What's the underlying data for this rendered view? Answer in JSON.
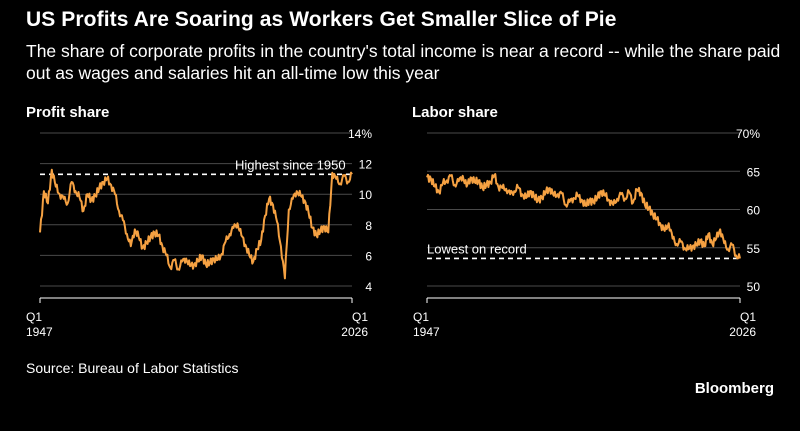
{
  "title": "US Profits Are Soaring as Workers Get Smaller Slice of Pie",
  "subtitle": "The share of corporate profits in the country's total income is near a record -- while the share paid out as wages and salaries hit an all-time low this year",
  "source": "Source: Bureau of Labor Statistics",
  "brand": "Bloomberg",
  "colors": {
    "line": "#f5a142",
    "grid": "#4a4a4a",
    "reference": "#ffffff",
    "background": "#000000"
  },
  "chart_data": [
    {
      "type": "line",
      "title": "Profit share",
      "y_unit": "%",
      "ylim": [
        4,
        14
      ],
      "y_ticks": [
        4,
        6,
        8,
        10,
        12,
        14
      ],
      "y_tick_labels": [
        "4",
        "6",
        "8",
        "10",
        "12",
        "14%"
      ],
      "xlim": [
        1947,
        2026
      ],
      "x_tick_labels": [
        {
          "line1": "Q1",
          "line2": "1947"
        },
        {
          "line1": "Q1",
          "line2": "2026"
        }
      ],
      "reference_line": {
        "value": 11.3,
        "label": "Highest since 1950"
      },
      "grid": true,
      "series": [
        {
          "x": [
            1947,
            1948,
            1949,
            1950,
            1951,
            1952,
            1953,
            1954,
            1955,
            1956,
            1957,
            1958,
            1959,
            1960,
            1961,
            1962,
            1963,
            1964,
            1965,
            1966,
            1967,
            1968,
            1969,
            1970,
            1971,
            1972,
            1973,
            1974,
            1975,
            1976,
            1977,
            1978,
            1979,
            1980,
            1981,
            1982,
            1983,
            1984,
            1985,
            1986,
            1987,
            1988,
            1989,
            1990,
            1991,
            1992,
            1993,
            1994,
            1995,
            1996,
            1997,
            1998,
            1999,
            2000,
            2001,
            2002,
            2003,
            2004,
            2005,
            2006,
            2007,
            2008,
            2009,
            2010,
            2011,
            2012,
            2013,
            2014,
            2015,
            2016,
            2017,
            2018,
            2019,
            2020,
            2021,
            2022,
            2023,
            2024,
            2025,
            2026
          ],
          "y": [
            7.5,
            10.2,
            9.4,
            11.6,
            10.5,
            10.0,
            9.7,
            9.4,
            10.8,
            10.2,
            9.8,
            8.9,
            10.0,
            9.6,
            9.9,
            10.4,
            10.8,
            11.0,
            10.6,
            10.0,
            8.9,
            8.3,
            7.4,
            6.6,
            7.7,
            7.2,
            6.5,
            6.8,
            7.2,
            7.5,
            7.3,
            6.6,
            6.0,
            5.2,
            5.7,
            5.1,
            5.6,
            5.8,
            5.3,
            5.4,
            5.6,
            6.0,
            5.4,
            5.5,
            5.8,
            5.7,
            6.1,
            6.9,
            7.4,
            7.8,
            8.1,
            7.3,
            6.7,
            6.0,
            5.6,
            6.4,
            7.0,
            8.6,
            9.7,
            9.3,
            8.2,
            6.6,
            4.5,
            9.0,
            9.7,
            10.2,
            9.9,
            9.6,
            8.8,
            7.8,
            7.3,
            7.6,
            7.9,
            7.5,
            11.4,
            11.0,
            10.7,
            11.2,
            10.8,
            11.3
          ]
        }
      ]
    },
    {
      "type": "line",
      "title": "Labor share",
      "y_unit": "%",
      "ylim": [
        50,
        70
      ],
      "y_ticks": [
        50,
        55,
        60,
        65,
        70
      ],
      "y_tick_labels": [
        "50",
        "55",
        "60",
        "65",
        "70%"
      ],
      "xlim": [
        1947,
        2026
      ],
      "x_tick_labels": [
        {
          "line1": "Q1",
          "line2": "1947"
        },
        {
          "line1": "Q1",
          "line2": "2026"
        }
      ],
      "reference_line": {
        "value": 53.6,
        "label": "Lowest on record"
      },
      "grid": true,
      "series": [
        {
          "x": [
            1947,
            1948,
            1949,
            1950,
            1951,
            1952,
            1953,
            1954,
            1955,
            1956,
            1957,
            1958,
            1959,
            1960,
            1961,
            1962,
            1963,
            1964,
            1965,
            1966,
            1967,
            1968,
            1969,
            1970,
            1971,
            1972,
            1973,
            1974,
            1975,
            1976,
            1977,
            1978,
            1979,
            1980,
            1981,
            1982,
            1983,
            1984,
            1985,
            1986,
            1987,
            1988,
            1989,
            1990,
            1991,
            1992,
            1993,
            1994,
            1995,
            1996,
            1997,
            1998,
            1999,
            2000,
            2001,
            2002,
            2003,
            2004,
            2005,
            2006,
            2007,
            2008,
            2009,
            2010,
            2011,
            2012,
            2013,
            2014,
            2015,
            2016,
            2017,
            2018,
            2019,
            2020,
            2021,
            2022,
            2023,
            2024,
            2025,
            2026
          ],
          "y": [
            64.2,
            64.0,
            63.0,
            62.3,
            63.4,
            63.8,
            64.4,
            63.2,
            63.7,
            64.4,
            63.0,
            64.2,
            63.6,
            63.8,
            62.8,
            63.2,
            63.6,
            64.5,
            63.0,
            62.8,
            62.7,
            62.0,
            62.4,
            62.9,
            62.0,
            61.5,
            62.4,
            61.7,
            61.2,
            61.6,
            62.3,
            62.8,
            61.8,
            62.0,
            62.1,
            60.6,
            61.0,
            61.5,
            61.8,
            61.3,
            60.5,
            61.2,
            61.0,
            61.6,
            62.4,
            61.8,
            61.2,
            60.6,
            61.4,
            62.0,
            61.4,
            62.3,
            60.9,
            62.6,
            62.2,
            60.6,
            60.2,
            59.4,
            58.7,
            58.0,
            57.2,
            58.2,
            56.2,
            55.5,
            55.8,
            55.0,
            54.8,
            55.2,
            55.3,
            56.0,
            55.2,
            56.8,
            55.5,
            56.2,
            57.4,
            55.6,
            54.8,
            55.4,
            54.0,
            53.6
          ]
        }
      ]
    }
  ]
}
